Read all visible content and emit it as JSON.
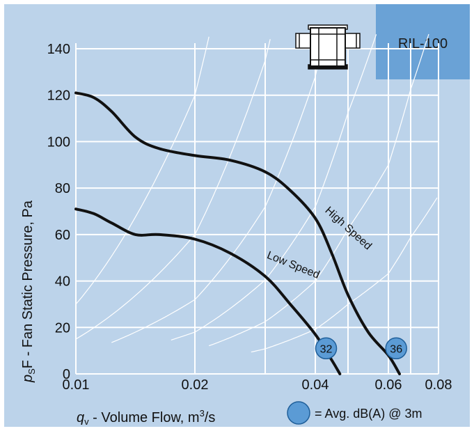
{
  "model_badge": "RIL-100",
  "legend": {
    "text": "= Avg. dB(A) @ 3m",
    "marker_color": "#5b9bd5"
  },
  "colors": {
    "background": "#bcd3ea",
    "badge": "#6aa2d6",
    "grid": "#ffffff",
    "curve": "#111111",
    "marker": "#5b9bd5"
  },
  "icon": "inline-duct-fan-icon",
  "chart_data": {
    "type": "line",
    "title": "",
    "xlabel": "q_v - Volume Flow, m³/s",
    "ylabel": "p_sF - Fan Static Pressure, Pa",
    "xlim": [
      0.01,
      0.08
    ],
    "ylim": [
      0,
      140
    ],
    "x_ticks": [
      0.01,
      0.02,
      0.04,
      0.06,
      0.08
    ],
    "x_tick_labels": [
      "0.01",
      "0.02",
      "0.04",
      "0.06",
      "0.08"
    ],
    "x_minor_grid": [
      0.03,
      0.05,
      0.07
    ],
    "y_ticks": [
      0,
      20,
      40,
      60,
      80,
      100,
      120,
      140
    ],
    "y_tick_labels": [
      "0",
      "20",
      "40",
      "60",
      "80",
      "100",
      "120",
      "140"
    ],
    "grid": true,
    "series": [
      {
        "name": "High Speed",
        "label_position": [
          0.0428,
          70
        ],
        "label_angle": 42,
        "points": [
          [
            0.01,
            121
          ],
          [
            0.0115,
            119
          ],
          [
            0.013,
            113
          ],
          [
            0.015,
            102
          ],
          [
            0.017,
            97
          ],
          [
            0.02,
            94
          ],
          [
            0.025,
            92
          ],
          [
            0.03,
            87
          ],
          [
            0.035,
            79
          ],
          [
            0.04,
            67
          ],
          [
            0.045,
            52
          ],
          [
            0.05,
            34
          ],
          [
            0.055,
            18
          ],
          [
            0.06,
            8
          ],
          [
            0.065,
            0
          ]
        ]
      },
      {
        "name": "Low Speed",
        "label_position": [
          0.0302,
          50
        ],
        "label_angle": 22,
        "points": [
          [
            0.01,
            71
          ],
          [
            0.0115,
            69
          ],
          [
            0.013,
            65
          ],
          [
            0.015,
            60
          ],
          [
            0.017,
            60
          ],
          [
            0.02,
            58
          ],
          [
            0.025,
            52
          ],
          [
            0.03,
            42
          ],
          [
            0.035,
            30
          ],
          [
            0.04,
            17
          ],
          [
            0.045,
            6
          ],
          [
            0.0475,
            0
          ]
        ]
      }
    ],
    "sound_markers": [
      {
        "label": "32",
        "x": 0.0433,
        "y": 11
      },
      {
        "label": "36",
        "x": 0.0635,
        "y": 11
      }
    ],
    "system_curves": [
      {
        "k": 300000,
        "x_start": 0.01
      },
      {
        "k": 150000,
        "x_start": 0.01
      },
      {
        "k": 80000,
        "x_start": 0.013
      },
      {
        "k": 45000,
        "x_start": 0.018
      },
      {
        "k": 25000,
        "x_start": 0.022
      },
      {
        "k": 12000,
        "x_start": 0.028
      }
    ]
  }
}
